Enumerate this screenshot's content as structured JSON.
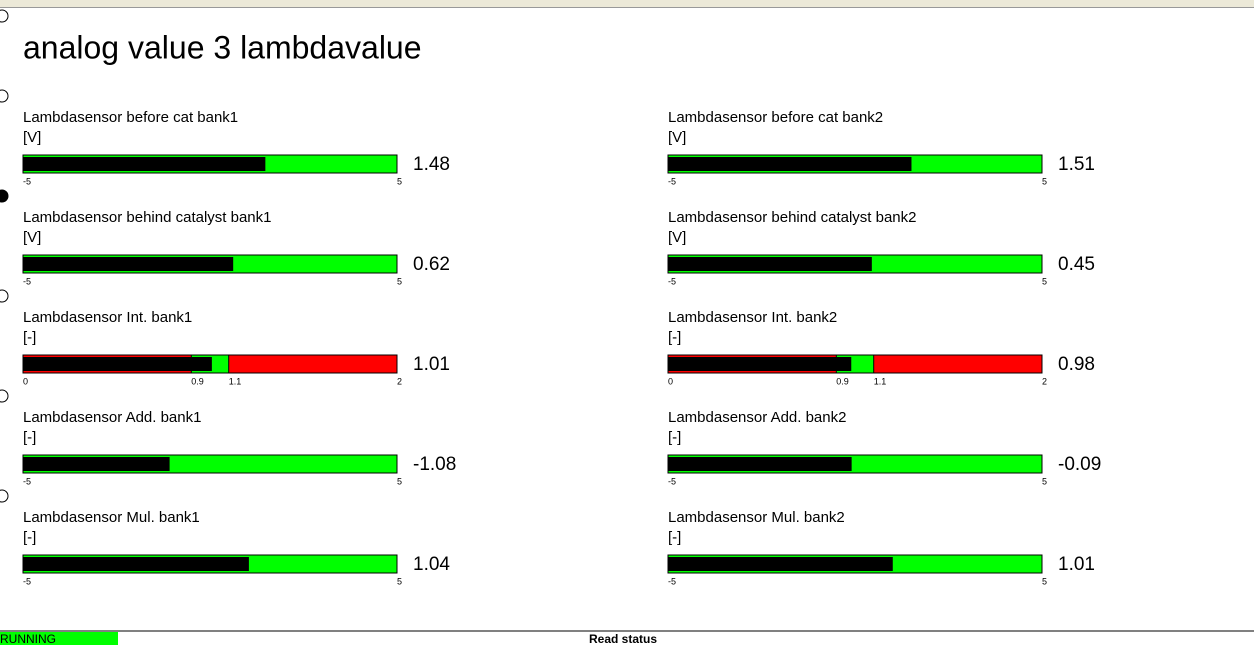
{
  "title": "analog value 3 lambdavalue",
  "gauges": [
    {
      "label": "Lambdasensor before cat bank1",
      "unit": "[V]",
      "value": 1.48,
      "range": [
        -5,
        5
      ],
      "ticks": [
        -5,
        5
      ],
      "bar_color": "#000000",
      "zones": [
        {
          "from": -5,
          "to": 5,
          "color": "#00ff00"
        }
      ]
    },
    {
      "label": "Lambdasensor before cat bank2",
      "unit": "[V]",
      "value": 1.51,
      "range": [
        -5,
        5
      ],
      "ticks": [
        -5,
        5
      ],
      "bar_color": "#000000",
      "zones": [
        {
          "from": -5,
          "to": 5,
          "color": "#00ff00"
        }
      ]
    },
    {
      "label": "Lambdasensor behind catalyst bank1",
      "unit": "[V]",
      "value": 0.62,
      "range": [
        -5,
        5
      ],
      "ticks": [
        -5,
        5
      ],
      "bar_color": "#000000",
      "zones": [
        {
          "from": -5,
          "to": 5,
          "color": "#00ff00"
        }
      ]
    },
    {
      "label": "Lambdasensor behind catalyst bank2",
      "unit": "[V]",
      "value": 0.45,
      "range": [
        -5,
        5
      ],
      "ticks": [
        -5,
        5
      ],
      "bar_color": "#000000",
      "zones": [
        {
          "from": -5,
          "to": 5,
          "color": "#00ff00"
        }
      ]
    },
    {
      "label": "Lambdasensor Int. bank1",
      "unit": "[-]",
      "value": 1.01,
      "range": [
        0,
        2
      ],
      "ticks": [
        0,
        0.9,
        1.1,
        2
      ],
      "bar_color": "#000000",
      "zones": [
        {
          "from": 0,
          "to": 0.9,
          "color": "#ff0000"
        },
        {
          "from": 0.9,
          "to": 1.1,
          "color": "#00ff00"
        },
        {
          "from": 1.1,
          "to": 2,
          "color": "#ff0000"
        }
      ]
    },
    {
      "label": "Lambdasensor Int. bank2",
      "unit": "[-]",
      "value": 0.98,
      "range": [
        0,
        2
      ],
      "ticks": [
        0,
        0.9,
        1.1,
        2
      ],
      "bar_color": "#000000",
      "zones": [
        {
          "from": 0,
          "to": 0.9,
          "color": "#ff0000"
        },
        {
          "from": 0.9,
          "to": 1.1,
          "color": "#00ff00"
        },
        {
          "from": 1.1,
          "to": 2,
          "color": "#ff0000"
        }
      ]
    },
    {
      "label": "Lambdasensor Add. bank1",
      "unit": "[-]",
      "value": -1.08,
      "range": [
        -5,
        5
      ],
      "ticks": [
        -5,
        5
      ],
      "bar_color": "#000000",
      "zones": [
        {
          "from": -5,
          "to": 5,
          "color": "#00ff00"
        }
      ]
    },
    {
      "label": "Lambdasensor Add. bank2",
      "unit": "[-]",
      "value": -0.09,
      "range": [
        -5,
        5
      ],
      "ticks": [
        -5,
        5
      ],
      "bar_color": "#000000",
      "zones": [
        {
          "from": -5,
          "to": 5,
          "color": "#00ff00"
        }
      ]
    },
    {
      "label": "Lambdasensor Mul. bank1",
      "unit": "[-]",
      "value": 1.04,
      "range": [
        -5,
        5
      ],
      "ticks": [
        -5,
        5
      ],
      "bar_color": "#000000",
      "zones": [
        {
          "from": -5,
          "to": 5,
          "color": "#00ff00"
        }
      ]
    },
    {
      "label": "Lambdasensor Mul. bank2",
      "unit": "[-]",
      "value": 1.01,
      "range": [
        -5,
        5
      ],
      "ticks": [
        -5,
        5
      ],
      "bar_color": "#000000",
      "zones": [
        {
          "from": -5,
          "to": 5,
          "color": "#00ff00"
        }
      ]
    }
  ],
  "status": {
    "state": "RUNNING",
    "message": "Read status"
  }
}
